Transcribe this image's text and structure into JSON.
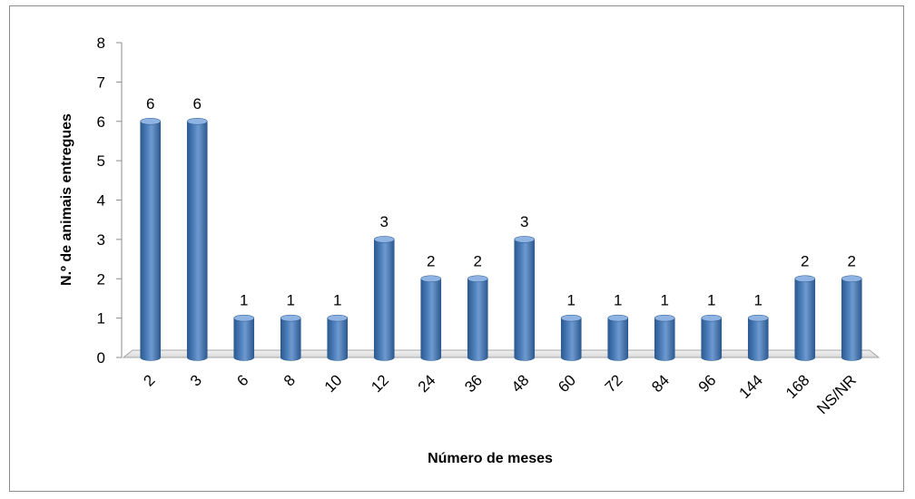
{
  "chart_data": {
    "type": "bar",
    "title": "",
    "xlabel": "Número de meses",
    "ylabel": "N.º de animais entregues",
    "categories": [
      "2",
      "3",
      "6",
      "8",
      "10",
      "12",
      "24",
      "36",
      "48",
      "60",
      "72",
      "84",
      "96",
      "144",
      "168",
      "NS/NR"
    ],
    "values": [
      6,
      6,
      1,
      1,
      1,
      3,
      2,
      2,
      3,
      1,
      1,
      1,
      1,
      1,
      2,
      2
    ],
    "ylim": [
      0,
      8
    ],
    "yticks": [
      0,
      1,
      2,
      3,
      4,
      5,
      6,
      7,
      8
    ],
    "data_labels": true,
    "grid": false,
    "legend": "none",
    "style": "3d-cylinder",
    "bar_color": "#4f81bd",
    "bar_dark": "#2c5a90",
    "bar_light": "#8fb4e3"
  }
}
